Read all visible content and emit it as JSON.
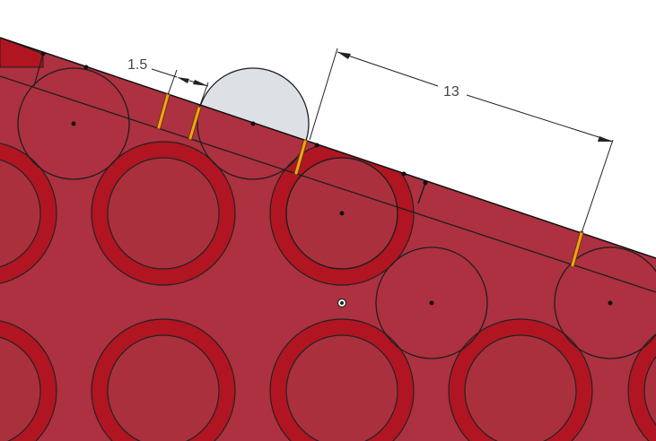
{
  "viewport": {
    "dimensions": [
      {
        "label": "1.5"
      },
      {
        "label": "13"
      }
    ]
  },
  "colors": {
    "background": "#ffffff",
    "sketch_face": "#ad3140",
    "ring": "#b01521",
    "selected_circle_fill": "#dde1e6",
    "sketch_line": "#1e1e1e",
    "constraint": "#f2a01f",
    "dimension": "#222222",
    "dimension_text": "#444444"
  }
}
